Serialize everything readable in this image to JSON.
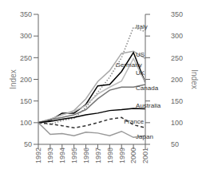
{
  "chart_data": {
    "type": "line",
    "x": [
      1992,
      1993,
      1994,
      1995,
      1996,
      1997,
      1998,
      1999,
      2000,
      2001
    ],
    "xlim": [
      1992,
      2001
    ],
    "xticks": [
      1992,
      1993,
      1994,
      1995,
      1996,
      1997,
      1998,
      1999,
      2000,
      2001
    ],
    "y_label": "Index",
    "ylim": [
      50,
      350
    ],
    "yticks": [
      50,
      100,
      150,
      200,
      250,
      300,
      350
    ],
    "y2_label": "Index",
    "y2lim": [
      50,
      350
    ],
    "y2ticks": [
      50,
      100,
      150,
      200,
      250,
      300,
      350
    ],
    "grid": false,
    "series": [
      {
        "name": "Italy",
        "color": "#888888",
        "line_style": "dotted",
        "values": [
          100,
          96,
          105,
          110,
          135,
          170,
          205,
          250,
          320,
          310
        ]
      },
      {
        "name": "US",
        "color": "#aaaaaa",
        "line_style": "solid",
        "values": [
          100,
          108,
          118,
          128,
          155,
          195,
          220,
          260,
          265,
          248
        ]
      },
      {
        "name": "Germany",
        "color": "#000000",
        "line_style": "solid",
        "values": [
          100,
          105,
          122,
          122,
          142,
          185,
          188,
          218,
          262,
          192
        ]
      },
      {
        "name": "UK",
        "color": "#bbbbbb",
        "line_style": "solid",
        "values": [
          100,
          108,
          118,
          126,
          140,
          166,
          182,
          196,
          248,
          192
        ]
      },
      {
        "name": "Canada",
        "color": "#777777",
        "line_style": "solid",
        "values": [
          100,
          107,
          112,
          118,
          130,
          155,
          175,
          182,
          182,
          188
        ]
      },
      {
        "name": "Australia",
        "color": "#000000",
        "line_style": "solid",
        "values": [
          100,
          103,
          108,
          112,
          118,
          122,
          128,
          130,
          133,
          132
        ]
      },
      {
        "name": "France",
        "color": "#333333",
        "line_style": "dashed",
        "values": [
          100,
          97,
          93,
          88,
          93,
          100,
          108,
          112,
          95,
          88
        ]
      },
      {
        "name": "Japan",
        "color": "#999999",
        "line_style": "solid",
        "values": [
          100,
          73,
          75,
          70,
          78,
          76,
          70,
          80,
          66,
          70
        ]
      }
    ],
    "annotations": [
      {
        "text": "Italy",
        "x": 2000.2,
        "y": 322
      },
      {
        "text": "US",
        "x": 2000.2,
        "y": 258
      },
      {
        "text": "Germany",
        "x": 1998.5,
        "y": 234
      },
      {
        "text": "UK",
        "x": 2000.2,
        "y": 215
      },
      {
        "text": "Canada",
        "x": 2000.2,
        "y": 180
      },
      {
        "text": "Australia",
        "x": 2000.2,
        "y": 140
      },
      {
        "text": "France",
        "x": 1999.2,
        "y": 104
      },
      {
        "text": "Japan",
        "x": 2000.2,
        "y": 68
      }
    ]
  }
}
